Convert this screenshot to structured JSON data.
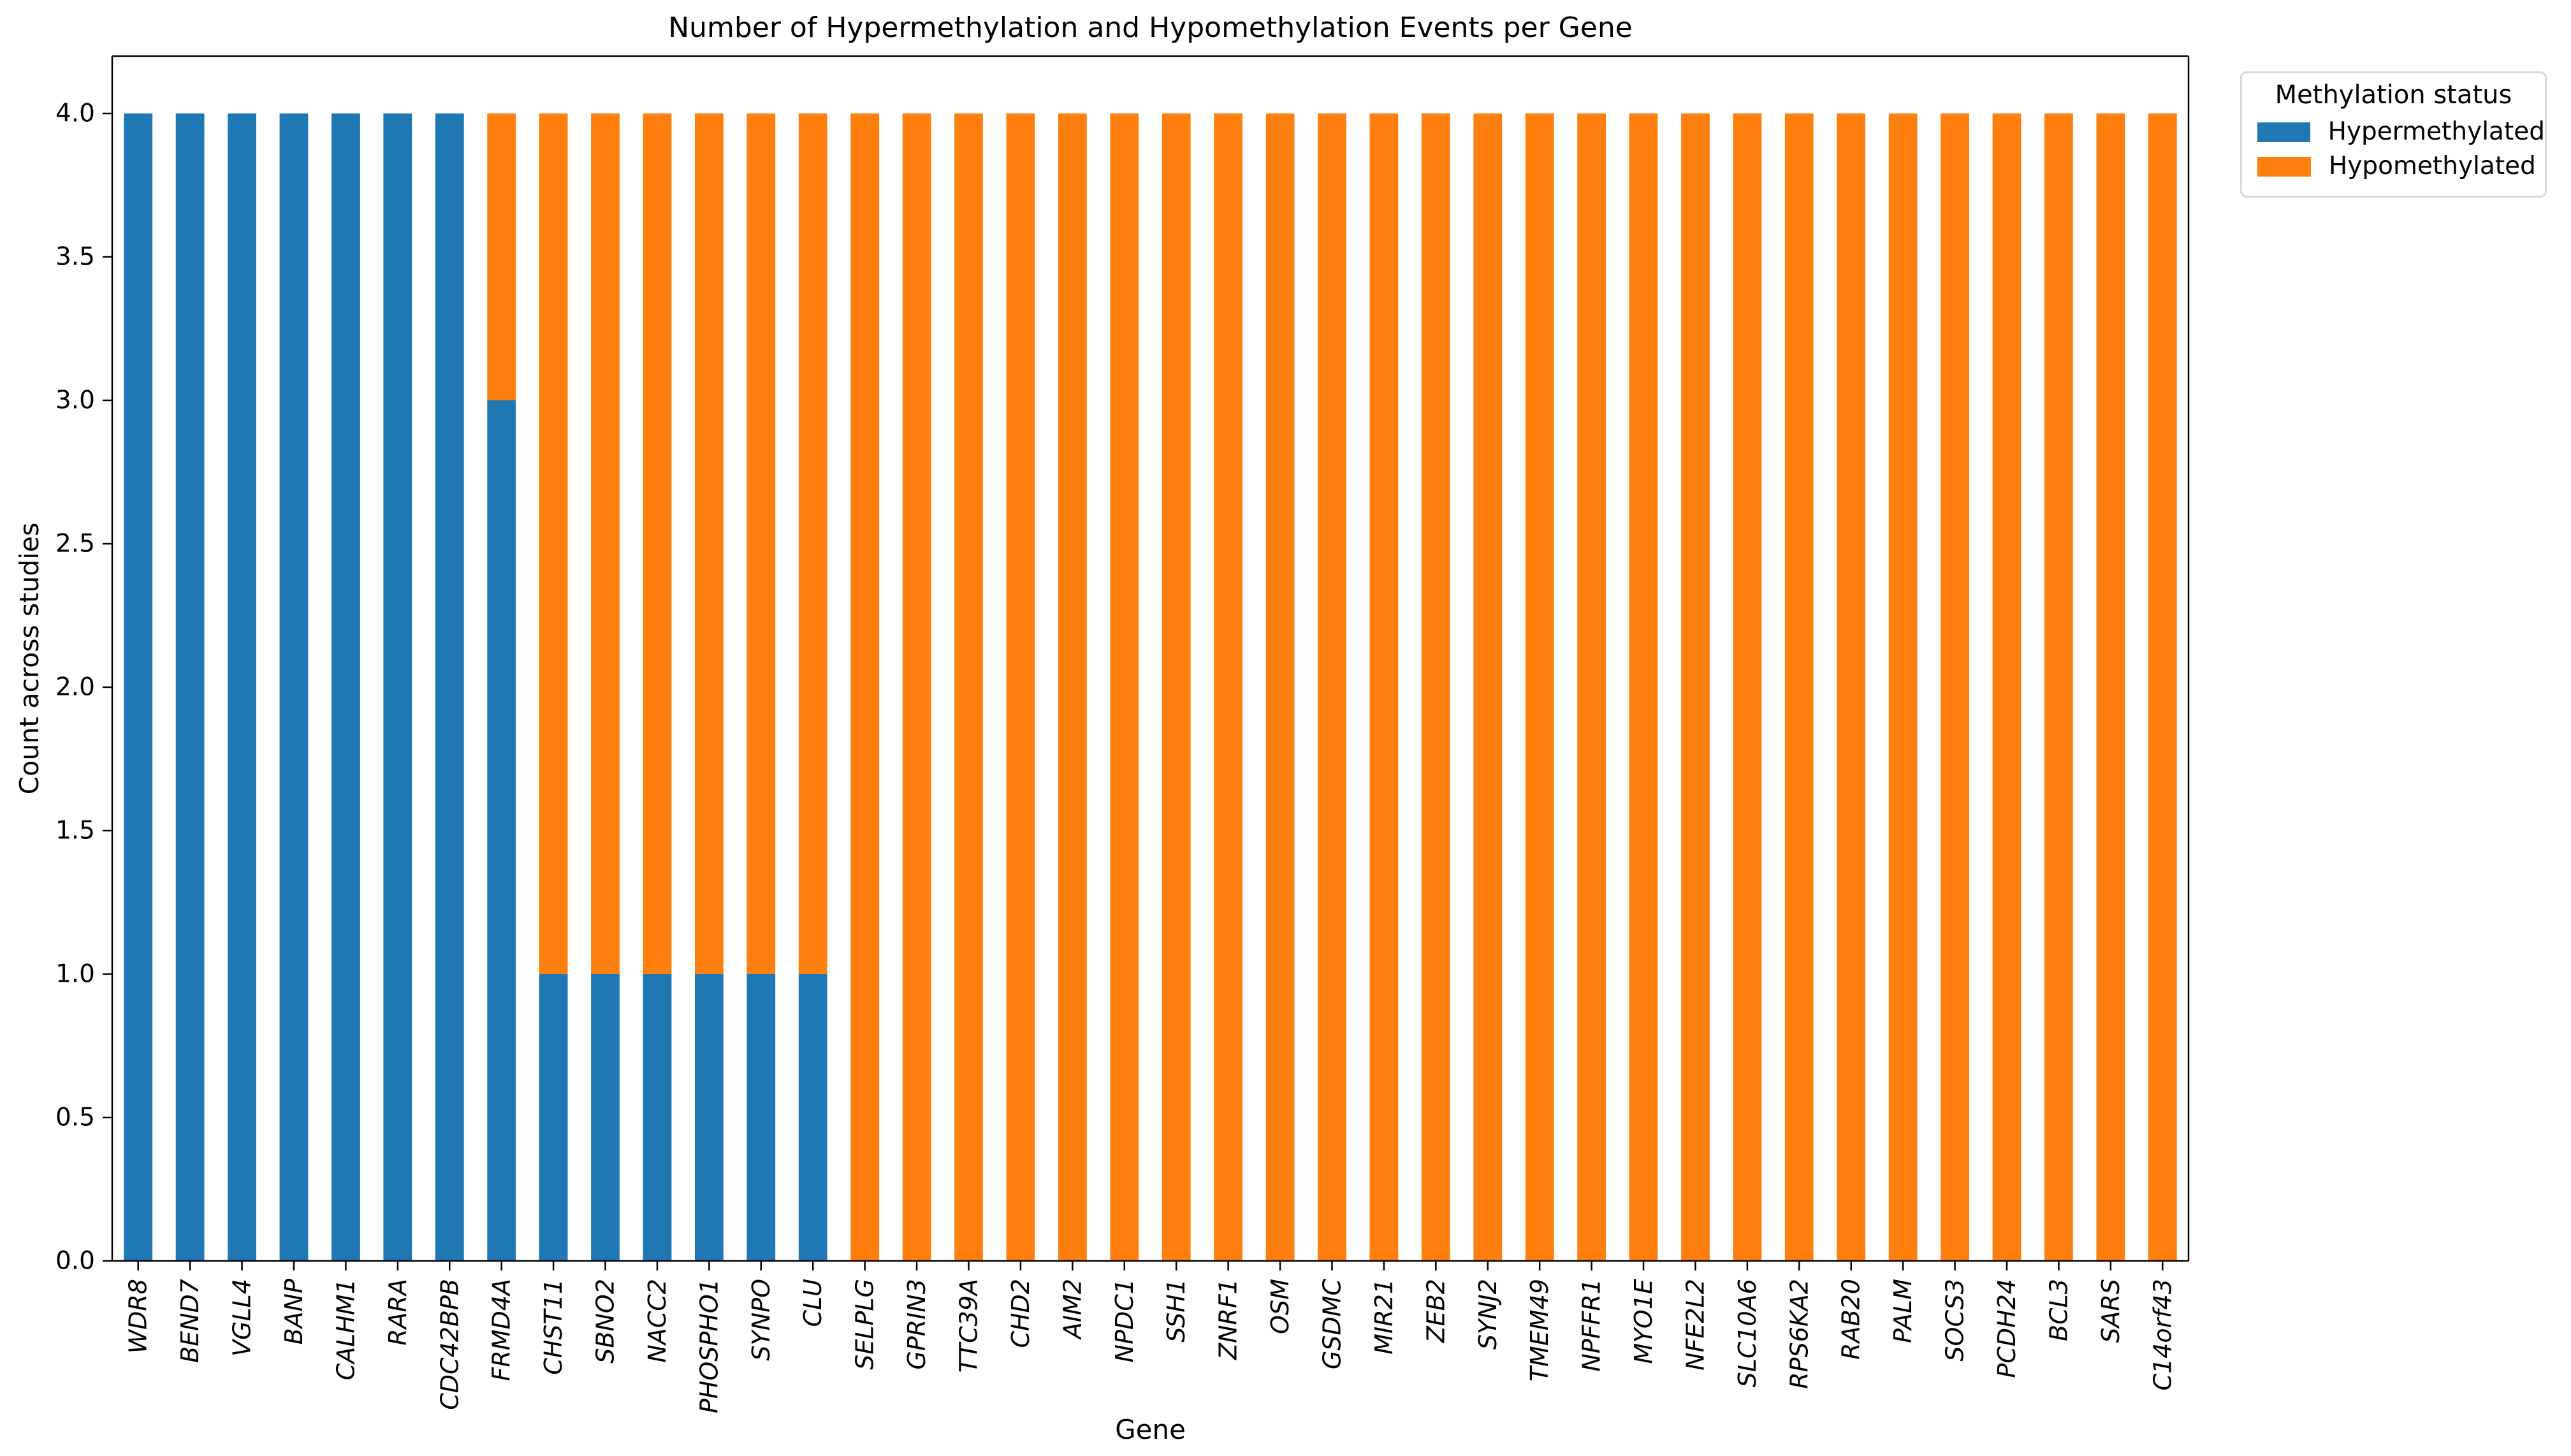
{
  "chart_data": {
    "type": "bar",
    "stacked": true,
    "title": "Number of Hypermethylation and Hypomethylation Events per Gene",
    "xlabel": "Gene",
    "ylabel": "Count across studies",
    "categories": [
      "WDR8",
      "BEND7",
      "VGLL4",
      "BANP",
      "CALHM1",
      "RARA",
      "CDC42BPB",
      "FRMD4A",
      "CHST11",
      "SBNO2",
      "NACC2",
      "PHOSPHO1",
      "SYNPO",
      "CLU",
      "SELPLG",
      "GPRIN3",
      "TTC39A",
      "CHD2",
      "AIM2",
      "NPDC1",
      "SSH1",
      "ZNRF1",
      "OSM",
      "GSDMC",
      "MIR21",
      "ZEB2",
      "SYNJ2",
      "TMEM49",
      "NPFFR1",
      "MYO1E",
      "NFE2L2",
      "SLC10A6",
      "RPS6KA2",
      "RAB20",
      "PALM",
      "SOCS3",
      "PCDH24",
      "BCL3",
      "SARS",
      "C14orf43"
    ],
    "series": [
      {
        "name": "Hypermethylated",
        "color": "#1f77b4",
        "values": [
          4,
          4,
          4,
          4,
          4,
          4,
          4,
          3,
          1,
          1,
          1,
          1,
          1,
          1,
          0,
          0,
          0,
          0,
          0,
          0,
          0,
          0,
          0,
          0,
          0,
          0,
          0,
          0,
          0,
          0,
          0,
          0,
          0,
          0,
          0,
          0,
          0,
          0,
          0,
          0
        ]
      },
      {
        "name": "Hypomethylated",
        "color": "#ff7f0e",
        "values": [
          0,
          0,
          0,
          0,
          0,
          0,
          0,
          1,
          3,
          3,
          3,
          3,
          3,
          3,
          4,
          4,
          4,
          4,
          4,
          4,
          4,
          4,
          4,
          4,
          4,
          4,
          4,
          4,
          4,
          4,
          4,
          4,
          4,
          4,
          4,
          4,
          4,
          4,
          4,
          4
        ]
      }
    ],
    "ylim": [
      0,
      4.2
    ],
    "yticks": [
      "0.0",
      "0.5",
      "1.0",
      "1.5",
      "2.0",
      "2.5",
      "3.0",
      "3.5",
      "4.0"
    ],
    "grid": false,
    "legend": {
      "title": "Methylation status",
      "position": "upper right outside"
    }
  }
}
